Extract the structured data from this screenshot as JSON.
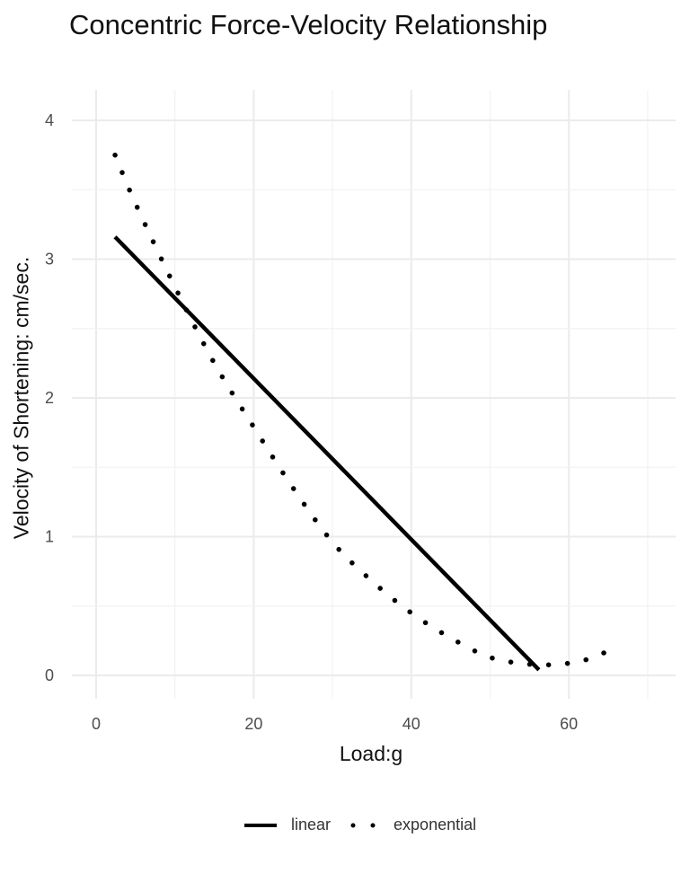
{
  "chart_data": {
    "type": "line",
    "title": "Concentric Force-Velocity Relationship",
    "xlabel": "Load:g",
    "ylabel": "Velocity of Shortening: cm/sec.",
    "xlim": [
      -3,
      71.5
    ],
    "ylim": [
      -0.1,
      4.3
    ],
    "x_ticks": [
      0,
      20,
      40,
      60
    ],
    "y_ticks": [
      0,
      1,
      2,
      3,
      4
    ],
    "grid": true,
    "legend_position": "bottom",
    "series": [
      {
        "name": "linear",
        "style": "solid",
        "color": "#000000",
        "x": [
          2.4,
          56.2
        ],
        "y": [
          3.16,
          0.04
        ]
      },
      {
        "name": "exponential",
        "style": "dotted",
        "color": "#000000",
        "x": [
          2.4,
          5,
          10,
          15,
          20,
          25,
          30,
          35,
          40,
          45,
          50,
          55,
          58.5,
          62,
          66
        ],
        "y": [
          3.75,
          3.4,
          2.8,
          2.25,
          1.79,
          1.35,
          0.96,
          0.68,
          0.45,
          0.27,
          0.13,
          0.08,
          0.08,
          0.11,
          0.2
        ]
      }
    ]
  },
  "legend": {
    "items": [
      {
        "label": "linear"
      },
      {
        "label": "exponential"
      }
    ]
  }
}
